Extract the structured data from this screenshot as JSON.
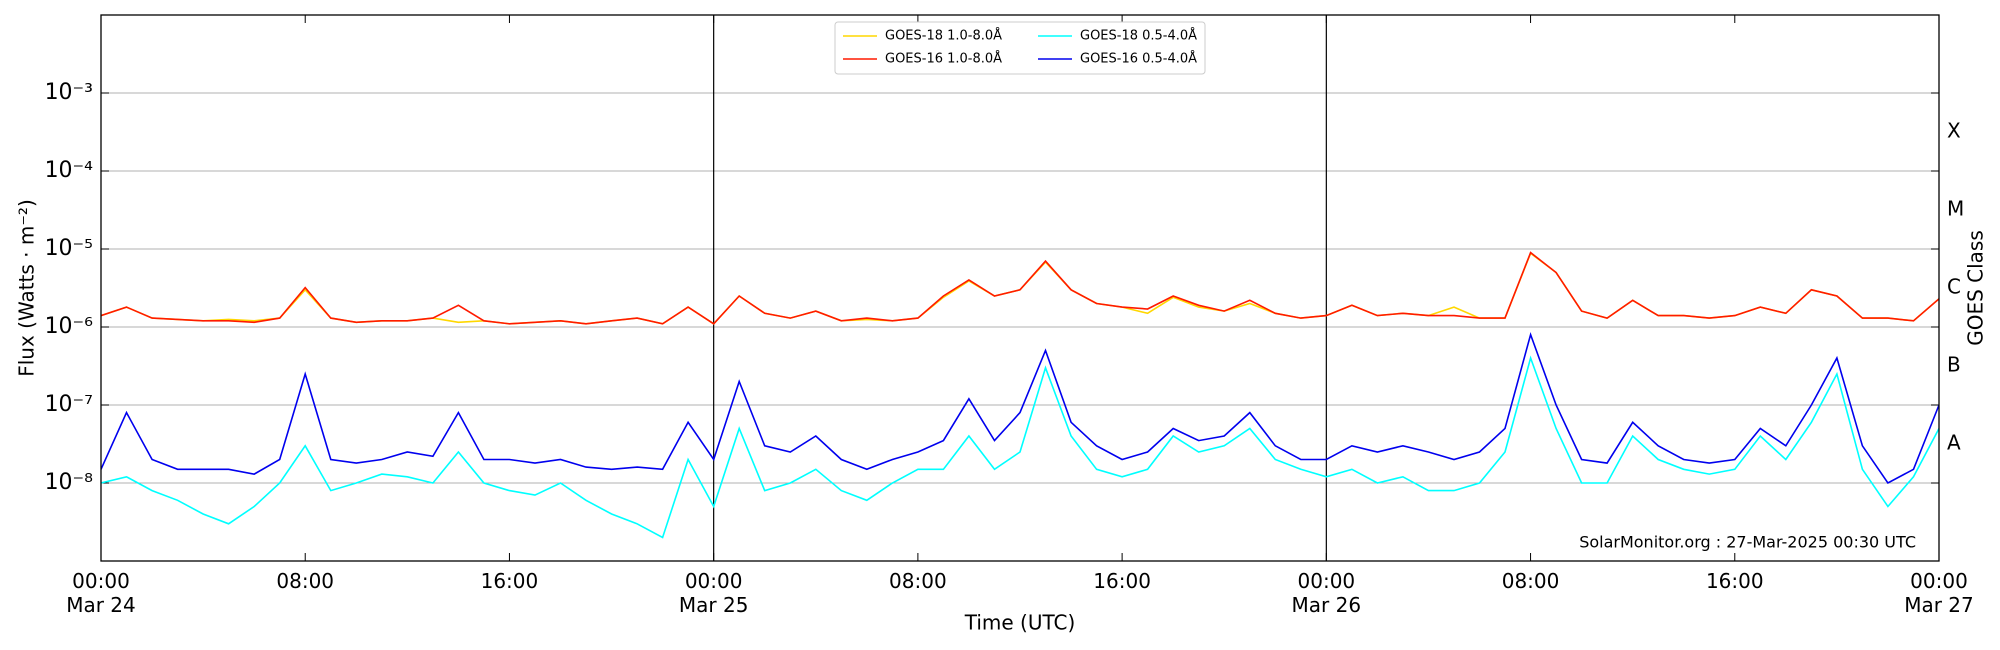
{
  "chart_data": {
    "type": "line",
    "x_label": "Time (UTC)",
    "y_label": "Flux (Watts · m⁻²)",
    "y2_label": "GOES Class",
    "annotation": "SolarMonitor.org : 27-Mar-2025 00:30 UTC",
    "log_y": true,
    "grid": true,
    "legend": "upper center",
    "xlim": [
      0,
      72
    ],
    "xticks": [
      {
        "value": 0,
        "label": "00:00\nMar 24"
      },
      {
        "value": 8,
        "label": "08:00"
      },
      {
        "value": 16,
        "label": "16:00"
      },
      {
        "value": 24,
        "label": "00:00\nMar 25"
      },
      {
        "value": 32,
        "label": "08:00"
      },
      {
        "value": 40,
        "label": "16:00"
      },
      {
        "value": 48,
        "label": "00:00\nMar 26"
      },
      {
        "value": 56,
        "label": "08:00"
      },
      {
        "value": 64,
        "label": "16:00"
      },
      {
        "value": 72,
        "label": "00:00\nMar 27"
      }
    ],
    "day_lines": [
      24,
      48
    ],
    "ylim": [
      1e-09,
      0.01
    ],
    "yticks": [
      {
        "value": 1e-08,
        "label": "10⁻⁸"
      },
      {
        "value": 1e-07,
        "label": "10⁻⁷"
      },
      {
        "value": 1e-06,
        "label": "10⁻⁶"
      },
      {
        "value": 1e-05,
        "label": "10⁻⁵"
      },
      {
        "value": 0.0001,
        "label": "10⁻⁴"
      },
      {
        "value": 0.001,
        "label": "10⁻³"
      }
    ],
    "y2lim": [
      1e-09,
      0.01
    ],
    "y2ticks": [
      {
        "value": 3.16e-08,
        "label": "A"
      },
      {
        "value": 3.16e-07,
        "label": "B"
      },
      {
        "value": 3.16e-06,
        "label": "C"
      },
      {
        "value": 3.16e-05,
        "label": "M"
      },
      {
        "value": 0.000316,
        "label": "X"
      }
    ],
    "x": [
      0,
      1,
      2,
      3,
      4,
      5,
      6,
      7,
      8,
      9,
      10,
      11,
      12,
      13,
      14,
      15,
      16,
      17,
      18,
      19,
      20,
      21,
      22,
      23,
      24,
      25,
      26,
      27,
      28,
      29,
      30,
      31,
      32,
      33,
      34,
      35,
      36,
      37,
      38,
      39,
      40,
      41,
      42,
      43,
      44,
      45,
      46,
      47,
      48,
      49,
      50,
      51,
      52,
      53,
      54,
      55,
      56,
      57,
      58,
      59,
      60,
      61,
      62,
      63,
      64,
      65,
      66,
      67,
      68,
      69,
      70,
      71,
      72
    ],
    "series": [
      {
        "name": "GOES-18 1.0-8.0Å",
        "color": "#ffd700",
        "values": [
          1.4e-06,
          1.8e-06,
          1.3e-06,
          1.25e-06,
          1.2e-06,
          1.25e-06,
          1.2e-06,
          1.3e-06,
          3e-06,
          1.3e-06,
          1.15e-06,
          1.2e-06,
          1.2e-06,
          1.3e-06,
          1.15e-06,
          1.2e-06,
          1.1e-06,
          1.15e-06,
          1.2e-06,
          1.1e-06,
          1.2e-06,
          1.3e-06,
          1.1e-06,
          1.8e-06,
          1.1e-06,
          2.5e-06,
          1.5e-06,
          1.3e-06,
          1.6e-06,
          1.2e-06,
          1.25e-06,
          1.2e-06,
          1.3e-06,
          2.4e-06,
          3.9e-06,
          2.5e-06,
          3e-06,
          6.8e-06,
          3e-06,
          2e-06,
          1.8e-06,
          1.5e-06,
          2.4e-06,
          1.8e-06,
          1.6e-06,
          2e-06,
          1.5e-06,
          1.3e-06,
          1.4e-06,
          1.9e-06,
          1.4e-06,
          1.5e-06,
          1.4e-06,
          1.8e-06,
          1.3e-06,
          1.3e-06,
          8.8e-06,
          5e-06,
          1.6e-06,
          1.3e-06,
          2.2e-06,
          1.4e-06,
          1.4e-06,
          1.3e-06,
          1.4e-06,
          1.8e-06,
          1.5e-06,
          3e-06,
          2.5e-06,
          1.3e-06,
          1.3e-06,
          1.2e-06,
          2.3e-06
        ]
      },
      {
        "name": "GOES-16 1.0-8.0Å",
        "color": "#ff1a00",
        "values": [
          1.4e-06,
          1.8e-06,
          1.3e-06,
          1.25e-06,
          1.2e-06,
          1.2e-06,
          1.15e-06,
          1.3e-06,
          3.2e-06,
          1.3e-06,
          1.15e-06,
          1.2e-06,
          1.2e-06,
          1.3e-06,
          1.9e-06,
          1.2e-06,
          1.1e-06,
          1.15e-06,
          1.2e-06,
          1.1e-06,
          1.2e-06,
          1.3e-06,
          1.1e-06,
          1.8e-06,
          1.1e-06,
          2.5e-06,
          1.5e-06,
          1.3e-06,
          1.6e-06,
          1.2e-06,
          1.3e-06,
          1.2e-06,
          1.3e-06,
          2.5e-06,
          4e-06,
          2.5e-06,
          3e-06,
          7e-06,
          3e-06,
          2e-06,
          1.8e-06,
          1.7e-06,
          2.5e-06,
          1.9e-06,
          1.6e-06,
          2.2e-06,
          1.5e-06,
          1.3e-06,
          1.4e-06,
          1.9e-06,
          1.4e-06,
          1.5e-06,
          1.4e-06,
          1.4e-06,
          1.3e-06,
          1.3e-06,
          9e-06,
          5e-06,
          1.6e-06,
          1.3e-06,
          2.2e-06,
          1.4e-06,
          1.4e-06,
          1.3e-06,
          1.4e-06,
          1.8e-06,
          1.5e-06,
          3e-06,
          2.5e-06,
          1.3e-06,
          1.3e-06,
          1.2e-06,
          2.3e-06
        ]
      },
      {
        "name": "GOES-18 0.5-4.0Å",
        "color": "#00ffff",
        "values": [
          1e-08,
          1.2e-08,
          8e-09,
          6e-09,
          4e-09,
          3e-09,
          5e-09,
          1e-08,
          3e-08,
          8e-09,
          1e-08,
          1.3e-08,
          1.2e-08,
          1e-08,
          2.5e-08,
          1e-08,
          8e-09,
          7e-09,
          1e-08,
          6e-09,
          4e-09,
          3e-09,
          2e-09,
          2e-08,
          5e-09,
          5e-08,
          8e-09,
          1e-08,
          1.5e-08,
          8e-09,
          6e-09,
          1e-08,
          1.5e-08,
          1.5e-08,
          4e-08,
          1.5e-08,
          2.5e-08,
          3e-07,
          4e-08,
          1.5e-08,
          1.2e-08,
          1.5e-08,
          4e-08,
          2.5e-08,
          3e-08,
          5e-08,
          2e-08,
          1.5e-08,
          1.2e-08,
          1.5e-08,
          1e-08,
          1.2e-08,
          8e-09,
          8e-09,
          1e-08,
          2.5e-08,
          4e-07,
          5e-08,
          1e-08,
          1e-08,
          4e-08,
          2e-08,
          1.5e-08,
          1.3e-08,
          1.5e-08,
          4e-08,
          2e-08,
          6e-08,
          2.5e-07,
          1.5e-08,
          5e-09,
          1.2e-08,
          5e-08
        ]
      },
      {
        "name": "GOES-16 0.5-4.0Å",
        "color": "#0000ee",
        "values": [
          1.5e-08,
          8e-08,
          2e-08,
          1.5e-08,
          1.5e-08,
          1.5e-08,
          1.3e-08,
          2e-08,
          2.5e-07,
          2e-08,
          1.8e-08,
          2e-08,
          2.5e-08,
          2.2e-08,
          8e-08,
          2e-08,
          2e-08,
          1.8e-08,
          2e-08,
          1.6e-08,
          1.5e-08,
          1.6e-08,
          1.5e-08,
          6e-08,
          2e-08,
          2e-07,
          3e-08,
          2.5e-08,
          4e-08,
          2e-08,
          1.5e-08,
          2e-08,
          2.5e-08,
          3.5e-08,
          1.2e-07,
          3.5e-08,
          8e-08,
          5e-07,
          6e-08,
          3e-08,
          2e-08,
          2.5e-08,
          5e-08,
          3.5e-08,
          4e-08,
          8e-08,
          3e-08,
          2e-08,
          2e-08,
          3e-08,
          2.5e-08,
          3e-08,
          2.5e-08,
          2e-08,
          2.5e-08,
          5e-08,
          8e-07,
          1e-07,
          2e-08,
          1.8e-08,
          6e-08,
          3e-08,
          2e-08,
          1.8e-08,
          2e-08,
          5e-08,
          3e-08,
          1e-07,
          4e-07,
          3e-08,
          1e-08,
          1.5e-08,
          1e-07
        ]
      }
    ]
  }
}
